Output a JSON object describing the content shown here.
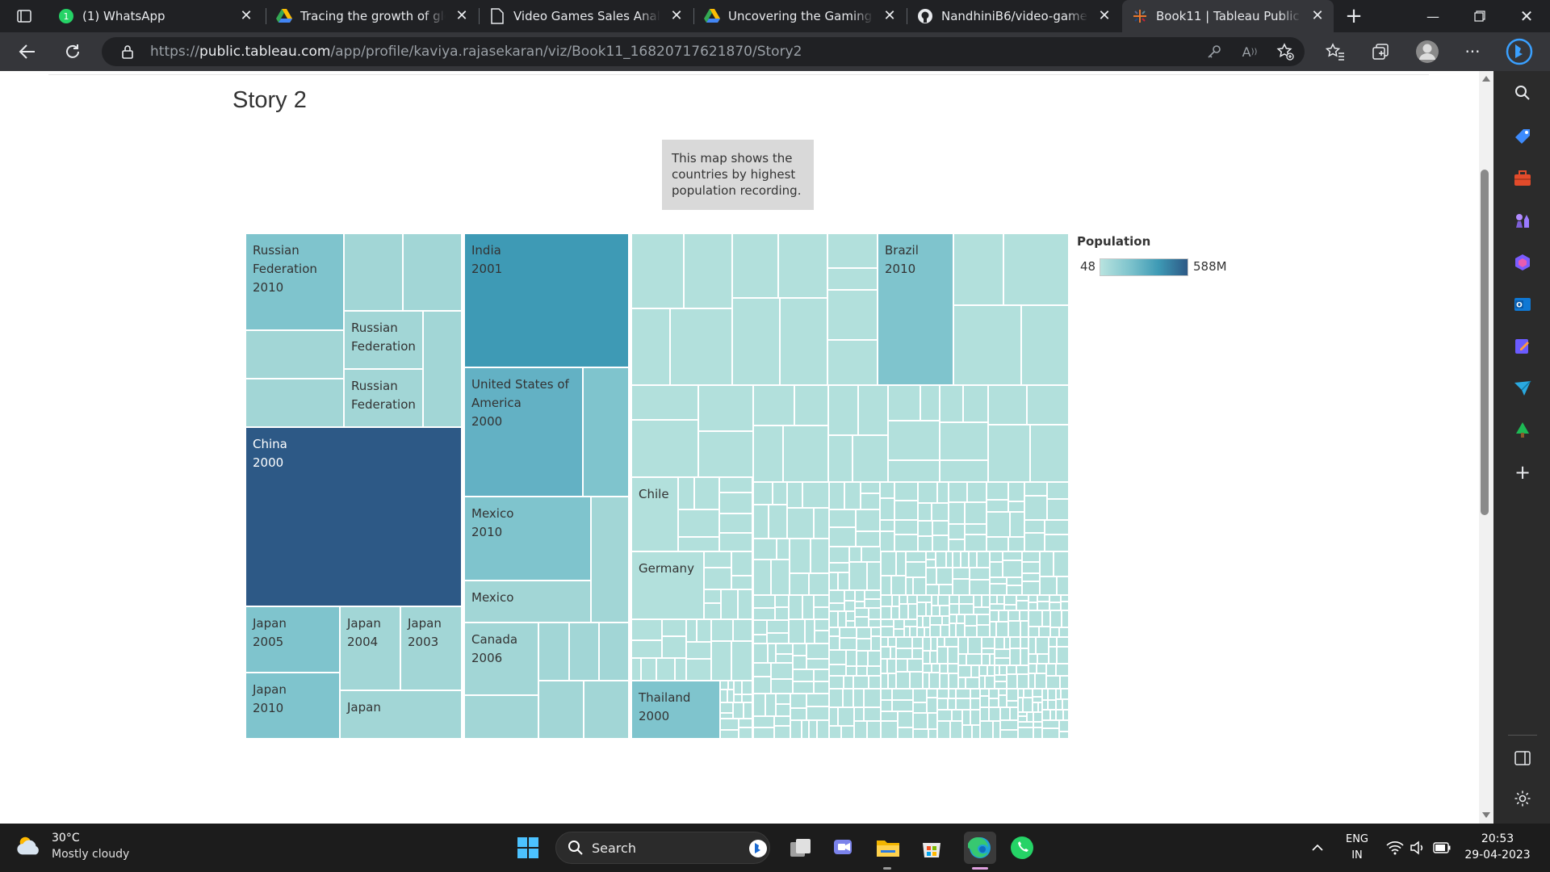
{
  "browser": {
    "tabs": [
      {
        "label": "(1) WhatsApp"
      },
      {
        "label": "Tracing the growth of global video game"
      },
      {
        "label": "Video Games Sales Analysis"
      },
      {
        "label": "Uncovering the Gaming Industry"
      },
      {
        "label": "NandhiniB6/video-games-sales"
      },
      {
        "label": "Book11 | Tableau Public"
      }
    ],
    "url_prefix": "https://",
    "url_domain": "public.tableau.com",
    "url_path": "/app/profile/kaviya.rajasekaran/viz/Book11_16820717621870/Story2"
  },
  "page": {
    "title": "Story 2",
    "caption": "This map shows the countries by highest population recording."
  },
  "legend": {
    "title": "Population",
    "min": "48",
    "max": "588M"
  },
  "colors": {
    "darkest": "#2d5986",
    "dark": "#3e9ab5",
    "mid": "#63b1c4",
    "light": "#7fc4cd",
    "lighter": "#a2d6d6",
    "pale": "#b2e0dc"
  },
  "treemap": {
    "labels": {
      "russia2010": "Russian Federation 2010",
      "russia_a": "Russian Federation",
      "russia_b": "Russian Federation",
      "china2000": "China 2000",
      "japan2005": "Japan 2005",
      "japan2004": "Japan 2004",
      "japan2003": "Japan 2003",
      "japan2010": "Japan 2010",
      "japan": "Japan",
      "india2001": "India 2001",
      "usa2000": "United States of America 2000",
      "mexico2010": "Mexico 2010",
      "mexico": "Mexico",
      "canada2006": "Canada 2006",
      "chile": "Chile",
      "germany": "Germany",
      "thailand2000": "Thailand 2000",
      "brazil2010": "Brazil 2010"
    }
  },
  "taskbar": {
    "temperature": "30°C",
    "weather": "Mostly cloudy",
    "search_label": "Search",
    "lang1": "ENG",
    "lang2": "IN",
    "time": "20:53",
    "date": "29-04-2023"
  }
}
